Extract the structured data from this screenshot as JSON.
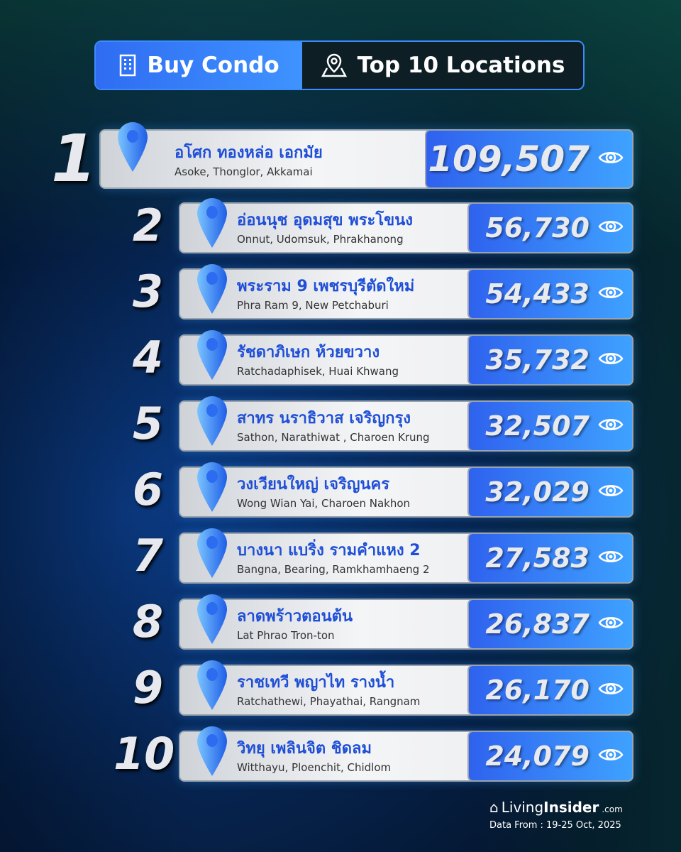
{
  "header": {
    "category": "Buy Condo",
    "title": "Top 10 Locations"
  },
  "items": [
    {
      "rank": "1",
      "thai": "อโศก ทองหล่อ เอกมัย",
      "english": "Asoke, Thonglor, Akkamai",
      "views": "109,507"
    },
    {
      "rank": "2",
      "thai": "อ่อนนุช อุดมสุข พระโขนง",
      "english": "Onnut, Udomsuk, Phrakhanong",
      "views": "56,730"
    },
    {
      "rank": "3",
      "thai": "พระราม 9 เพชรบุรีตัดใหม่",
      "english": "Phra Ram 9, New Petchaburi",
      "views": "54,433"
    },
    {
      "rank": "4",
      "thai": "รัชดาภิเษก ห้วยขวาง",
      "english": "Ratchadaphisek, Huai Khwang",
      "views": "35,732"
    },
    {
      "rank": "5",
      "thai": "สาทร นราธิวาส เจริญกรุง",
      "english": "Sathon, Narathiwat , Charoen Krung",
      "views": "32,507"
    },
    {
      "rank": "6",
      "thai": "วงเวียนใหญ่ เจริญนคร",
      "english": "Wong Wian Yai, Charoen Nakhon",
      "views": "32,029"
    },
    {
      "rank": "7",
      "thai": "บางนา แบริ่ง รามคำแหง 2",
      "english": "Bangna, Bearing, Ramkhamhaeng 2",
      "views": "27,583"
    },
    {
      "rank": "8",
      "thai": "ลาดพร้าวตอนต้น",
      "english": "Lat Phrao Tron-ton",
      "views": "26,837"
    },
    {
      "rank": "9",
      "thai": "ราชเทวี พญาไท รางน้ำ",
      "english": "Ratchathewi, Phayathai, Rangnam",
      "views": "26,170"
    },
    {
      "rank": "10",
      "thai": "วิทยุ เพลินจิต ชิดลม",
      "english": "Witthayu, Ploenchit, Chidlom",
      "views": "24,079"
    }
  ],
  "footer": {
    "brand_a": "Living",
    "brand_b": "Insider",
    "brand_c": ".com",
    "date": "Data From : 19-25 Oct, 2025"
  },
  "colors": {
    "accent": "#3f93ff",
    "thai_text": "#1f4fd6"
  }
}
